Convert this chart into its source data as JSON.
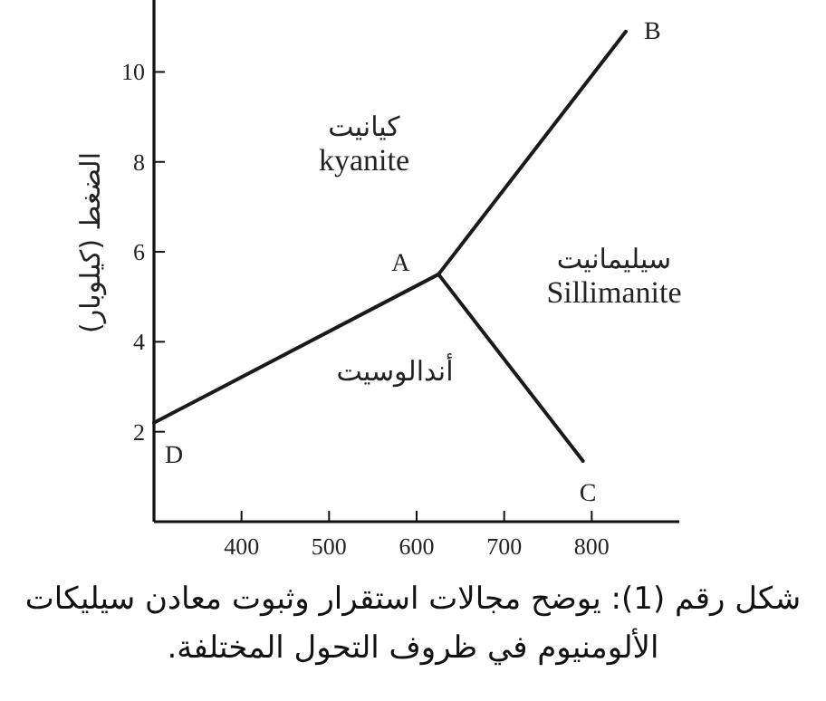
{
  "chart_data": {
    "type": "line",
    "ylabel": "الضغط (كيلوبار)",
    "xlim": [
      300,
      900
    ],
    "xticks": [
      400,
      500,
      600,
      700,
      800
    ],
    "ylim": [
      0,
      11.6
    ],
    "yticks": [
      2,
      4,
      6,
      8,
      10
    ],
    "grid": false,
    "marker": "none",
    "line_style": "solid",
    "series": [
      {
        "color": "#1a1a1a",
        "x": [
          300,
          625,
          839
        ],
        "values": [
          2.2,
          5.5,
          10.9
        ]
      },
      {
        "color": "#1a1a1a",
        "x": [
          625,
          790
        ],
        "values": [
          5.5,
          1.35
        ]
      }
    ],
    "annotations": [
      {
        "text": "D",
        "x": 300,
        "y": 2.2
      },
      {
        "text": "A",
        "x": 625,
        "y": 5.5
      },
      {
        "text": "B",
        "x": 839,
        "y": 10.9
      },
      {
        "text": "C",
        "x": 790,
        "y": 1.35
      },
      "كيانيت\nkyanite",
      "سيليمانيت\nSillimanite",
      "أندالوسيت",
      "شكل رقم (1): يوضح مجالات استقرار وثبوت معادن سيليكات الألومنيوم في ظروف التحول المختلفة."
    ]
  }
}
